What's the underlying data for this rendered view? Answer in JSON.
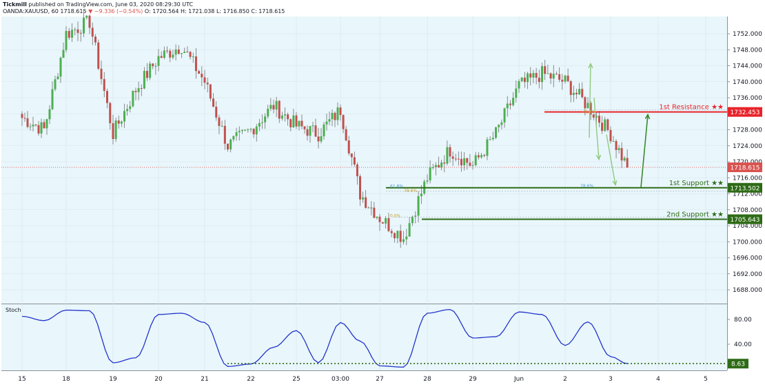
{
  "header": {
    "publisher": "Tickmill",
    "published_text": "published on TradingView.com, June 03, 2020 08:29:30 UTC",
    "symbol": "OANDA:XAUUSD, 60",
    "last": "1718.615",
    "change": "▼ −9.336 (−0.54%)",
    "o": "O: 1720.564",
    "h": "H: 1721.038",
    "l": "L: 1716.850",
    "c": "C: 1718.615"
  },
  "colors": {
    "background": "#e9f6fb",
    "up": "#4caf50",
    "down": "#c0504d",
    "wick": "#707070",
    "resistance": "#e8232a",
    "support": "#2e6b16",
    "arrow": "#3a8a2a",
    "arrow_light": "#8fc980",
    "stoch": "#2233cc",
    "last_price_tag": "#d9534f"
  },
  "chart_data": [
    {
      "type": "line",
      "subtype": "candlestick",
      "title": "OANDA:XAUUSD, 60",
      "ylim": [
        1685,
        1757
      ],
      "y_ticks": [
        "1752.000",
        "1748.000",
        "1744.000",
        "1740.000",
        "1736.000",
        "1732.000",
        "1728.000",
        "1724.000",
        "1720.000",
        "1716.000",
        "1712.000",
        "1708.000",
        "1704.000",
        "1700.000",
        "1696.000",
        "1692.000",
        "1688.000"
      ],
      "x_ticks": [
        "15",
        "18",
        "19",
        "20",
        "21",
        "22",
        "25",
        "03:00",
        "27",
        "28",
        "29",
        "Jun",
        "2",
        "3",
        "4",
        "5"
      ],
      "x": [
        "15",
        "15.5",
        "18",
        "18.5",
        "19",
        "19.5",
        "20",
        "20.5",
        "21",
        "21.5",
        "22",
        "22.5",
        "25",
        "25.5",
        "03:00",
        "03:00.5",
        "27",
        "27.5",
        "28",
        "28.5",
        "29",
        "29.5",
        "Jun",
        "Jun.5",
        "2",
        "2.5",
        "3",
        "3.3"
      ],
      "series": [
        {
          "values": [
            1731,
            1728,
            1752,
            1755,
            1727,
            1738,
            1746,
            1749,
            1740,
            1724,
            1728,
            1734,
            1729,
            1727,
            1733,
            1712,
            1706,
            1701,
            1716,
            1723,
            1719,
            1727,
            1739,
            1742,
            1740,
            1734,
            1727,
            1718.6
          ]
        }
      ],
      "horizontal_levels": [
        {
          "label": "1st Resistance ★★",
          "price": "1732.453",
          "value": 1732.453
        },
        {
          "label": "1st Support ★★",
          "price": "1713.502",
          "value": 1713.502
        },
        {
          "label": "2nd Support ★★",
          "price": "1705.643",
          "value": 1705.643
        }
      ],
      "last_price": {
        "label": "1718.615",
        "value": 1718.615
      },
      "fib_labels": [
        {
          "text": "61.8%",
          "x": "2",
          "y": 1732.0
        },
        {
          "text": "61.8%",
          "x": "27.5",
          "y": 1713.4
        },
        {
          "text": "78.6%",
          "x": "27.5",
          "y": 1712.3
        },
        {
          "text": "78.6%",
          "x": "3",
          "y": 1713.5
        },
        {
          "text": "0.0%",
          "x": "27.5",
          "y": 1706.0
        }
      ]
    },
    {
      "type": "line",
      "title": "Stoch",
      "ylim": [
        0,
        100
      ],
      "y_ticks": [
        "80.00",
        "40.00"
      ],
      "x": [
        "15",
        "15.5",
        "18",
        "18.5",
        "19",
        "19.5",
        "20",
        "20.5",
        "21",
        "21.5",
        "22",
        "22.5",
        "25",
        "25.5",
        "03:00",
        "03:00.5",
        "27",
        "27.5",
        "28",
        "28.5",
        "29",
        "29.5",
        "Jun",
        "Jun.5",
        "2",
        "2.5",
        "3",
        "3.3"
      ],
      "series": [
        {
          "values": [
            85,
            78,
            95,
            94,
            10,
            18,
            88,
            90,
            75,
            4,
            8,
            35,
            62,
            10,
            75,
            45,
            5,
            3,
            90,
            96,
            50,
            52,
            92,
            88,
            38,
            76,
            20,
            8.63
          ]
        }
      ],
      "last_value": {
        "label": "8.63",
        "value": 8.63
      }
    }
  ]
}
